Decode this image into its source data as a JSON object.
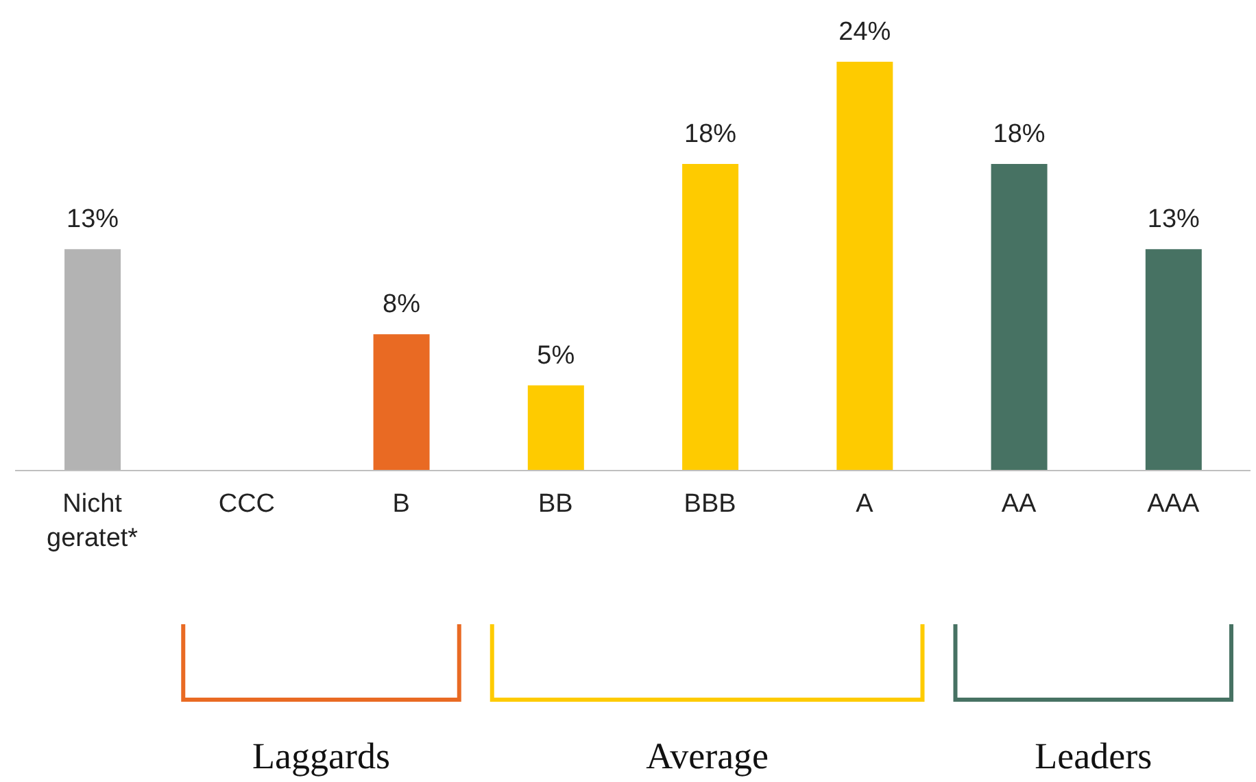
{
  "chart_data": {
    "type": "bar",
    "categories": [
      "Nicht geratet*",
      "CCC",
      "B",
      "BB",
      "BBB",
      "A",
      "AA",
      "AAA"
    ],
    "values": [
      13,
      null,
      8,
      5,
      18,
      24,
      18,
      13
    ],
    "value_labels": [
      "13%",
      null,
      "8%",
      "5%",
      "18%",
      "24%",
      "18%",
      "13%"
    ],
    "colors": [
      "#b3b3b3",
      "#e96a23",
      "#e96a23",
      "#fecb00",
      "#fecb00",
      "#fecb00",
      "#477263",
      "#477263"
    ],
    "ylim": [
      0,
      24
    ],
    "tick_labels": "x",
    "annotations": [
      "Laggards",
      "Average",
      "Leaders"
    ]
  }
}
